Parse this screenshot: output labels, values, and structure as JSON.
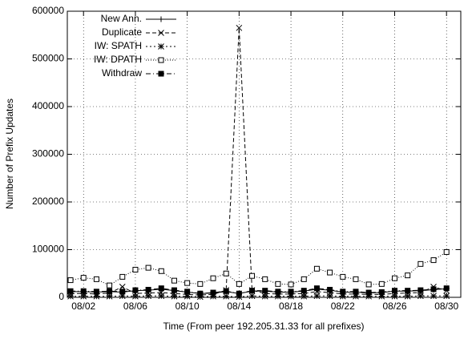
{
  "chart_data": {
    "type": "line",
    "xlabel": "Time (From peer 192.205.31.33 for all prefixes)",
    "ylabel": "Number of Prefix Updates",
    "x": [
      1,
      2,
      3,
      4,
      5,
      6,
      7,
      8,
      9,
      10,
      11,
      12,
      13,
      14,
      15,
      16,
      17,
      18,
      19,
      20,
      21,
      22,
      23,
      24,
      25,
      26,
      27,
      28,
      29,
      30
    ],
    "xlim": [
      0.75,
      31.1
    ],
    "xticks": [
      {
        "value": 2,
        "label": "08/02"
      },
      {
        "value": 6,
        "label": "08/06"
      },
      {
        "value": 10,
        "label": "08/10"
      },
      {
        "value": 14,
        "label": "08/14"
      },
      {
        "value": 18,
        "label": "08/18"
      },
      {
        "value": 22,
        "label": "08/22"
      },
      {
        "value": 26,
        "label": "08/26"
      },
      {
        "value": 30,
        "label": "08/30"
      }
    ],
    "ylim": [
      0,
      600000
    ],
    "yticks": [
      0,
      100000,
      200000,
      300000,
      400000,
      500000,
      600000
    ],
    "grid": true,
    "legend": "top-left",
    "series": [
      {
        "name": "New Ann.",
        "color": "#000000",
        "dash": "solid",
        "marker": "plus",
        "values": [
          12000,
          12000,
          11000,
          12000,
          11000,
          14000,
          15000,
          17000,
          14000,
          11000,
          8000,
          9000,
          12000,
          8000,
          13000,
          13000,
          11000,
          11000,
          13000,
          17000,
          15000,
          11000,
          11000,
          9000,
          10000,
          13000,
          13000,
          14000,
          16000,
          18000
        ]
      },
      {
        "name": "Duplicate",
        "color": "#000000",
        "dash": "dashed",
        "marker": "cross",
        "values": [
          8000,
          8000,
          7000,
          9000,
          22000,
          8000,
          9000,
          10000,
          8000,
          6000,
          5000,
          6000,
          15000,
          565000,
          15000,
          8000,
          7000,
          7000,
          8000,
          12000,
          10000,
          7000,
          7000,
          6000,
          6000,
          8000,
          9000,
          10000,
          22000,
          14000
        ]
      },
      {
        "name": "IW: SPATH",
        "color": "#000000",
        "dash": "dotted",
        "marker": "star",
        "values": [
          2000,
          2000,
          2000,
          2000,
          3000,
          2000,
          3000,
          3000,
          2000,
          2000,
          1000,
          2000,
          2000,
          1000,
          3000,
          2000,
          2000,
          2000,
          2000,
          3000,
          3000,
          2000,
          2000,
          2000,
          2000,
          2000,
          2000,
          3000,
          3000,
          3000
        ]
      },
      {
        "name": "IW: DPATH",
        "color": "#000000",
        "dash": "fine-dotted",
        "marker": "open-square",
        "values": [
          36000,
          41000,
          38000,
          25000,
          43000,
          58000,
          62000,
          55000,
          35000,
          30000,
          28000,
          40000,
          50000,
          28000,
          45000,
          38000,
          28000,
          27000,
          38000,
          60000,
          52000,
          43000,
          38000,
          27000,
          28000,
          40000,
          46000,
          70000,
          78000,
          95000
        ]
      },
      {
        "name": "Withdraw",
        "color": "#000000",
        "dash": "dash-dot",
        "marker": "filled-square",
        "values": [
          13000,
          13000,
          12000,
          13000,
          12000,
          15000,
          16000,
          19000,
          15000,
          12000,
          8000,
          10000,
          13000,
          8000,
          14000,
          14000,
          12000,
          12000,
          14000,
          19000,
          16000,
          12000,
          12000,
          10000,
          11000,
          14000,
          14000,
          15000,
          17000,
          19000
        ]
      }
    ]
  }
}
